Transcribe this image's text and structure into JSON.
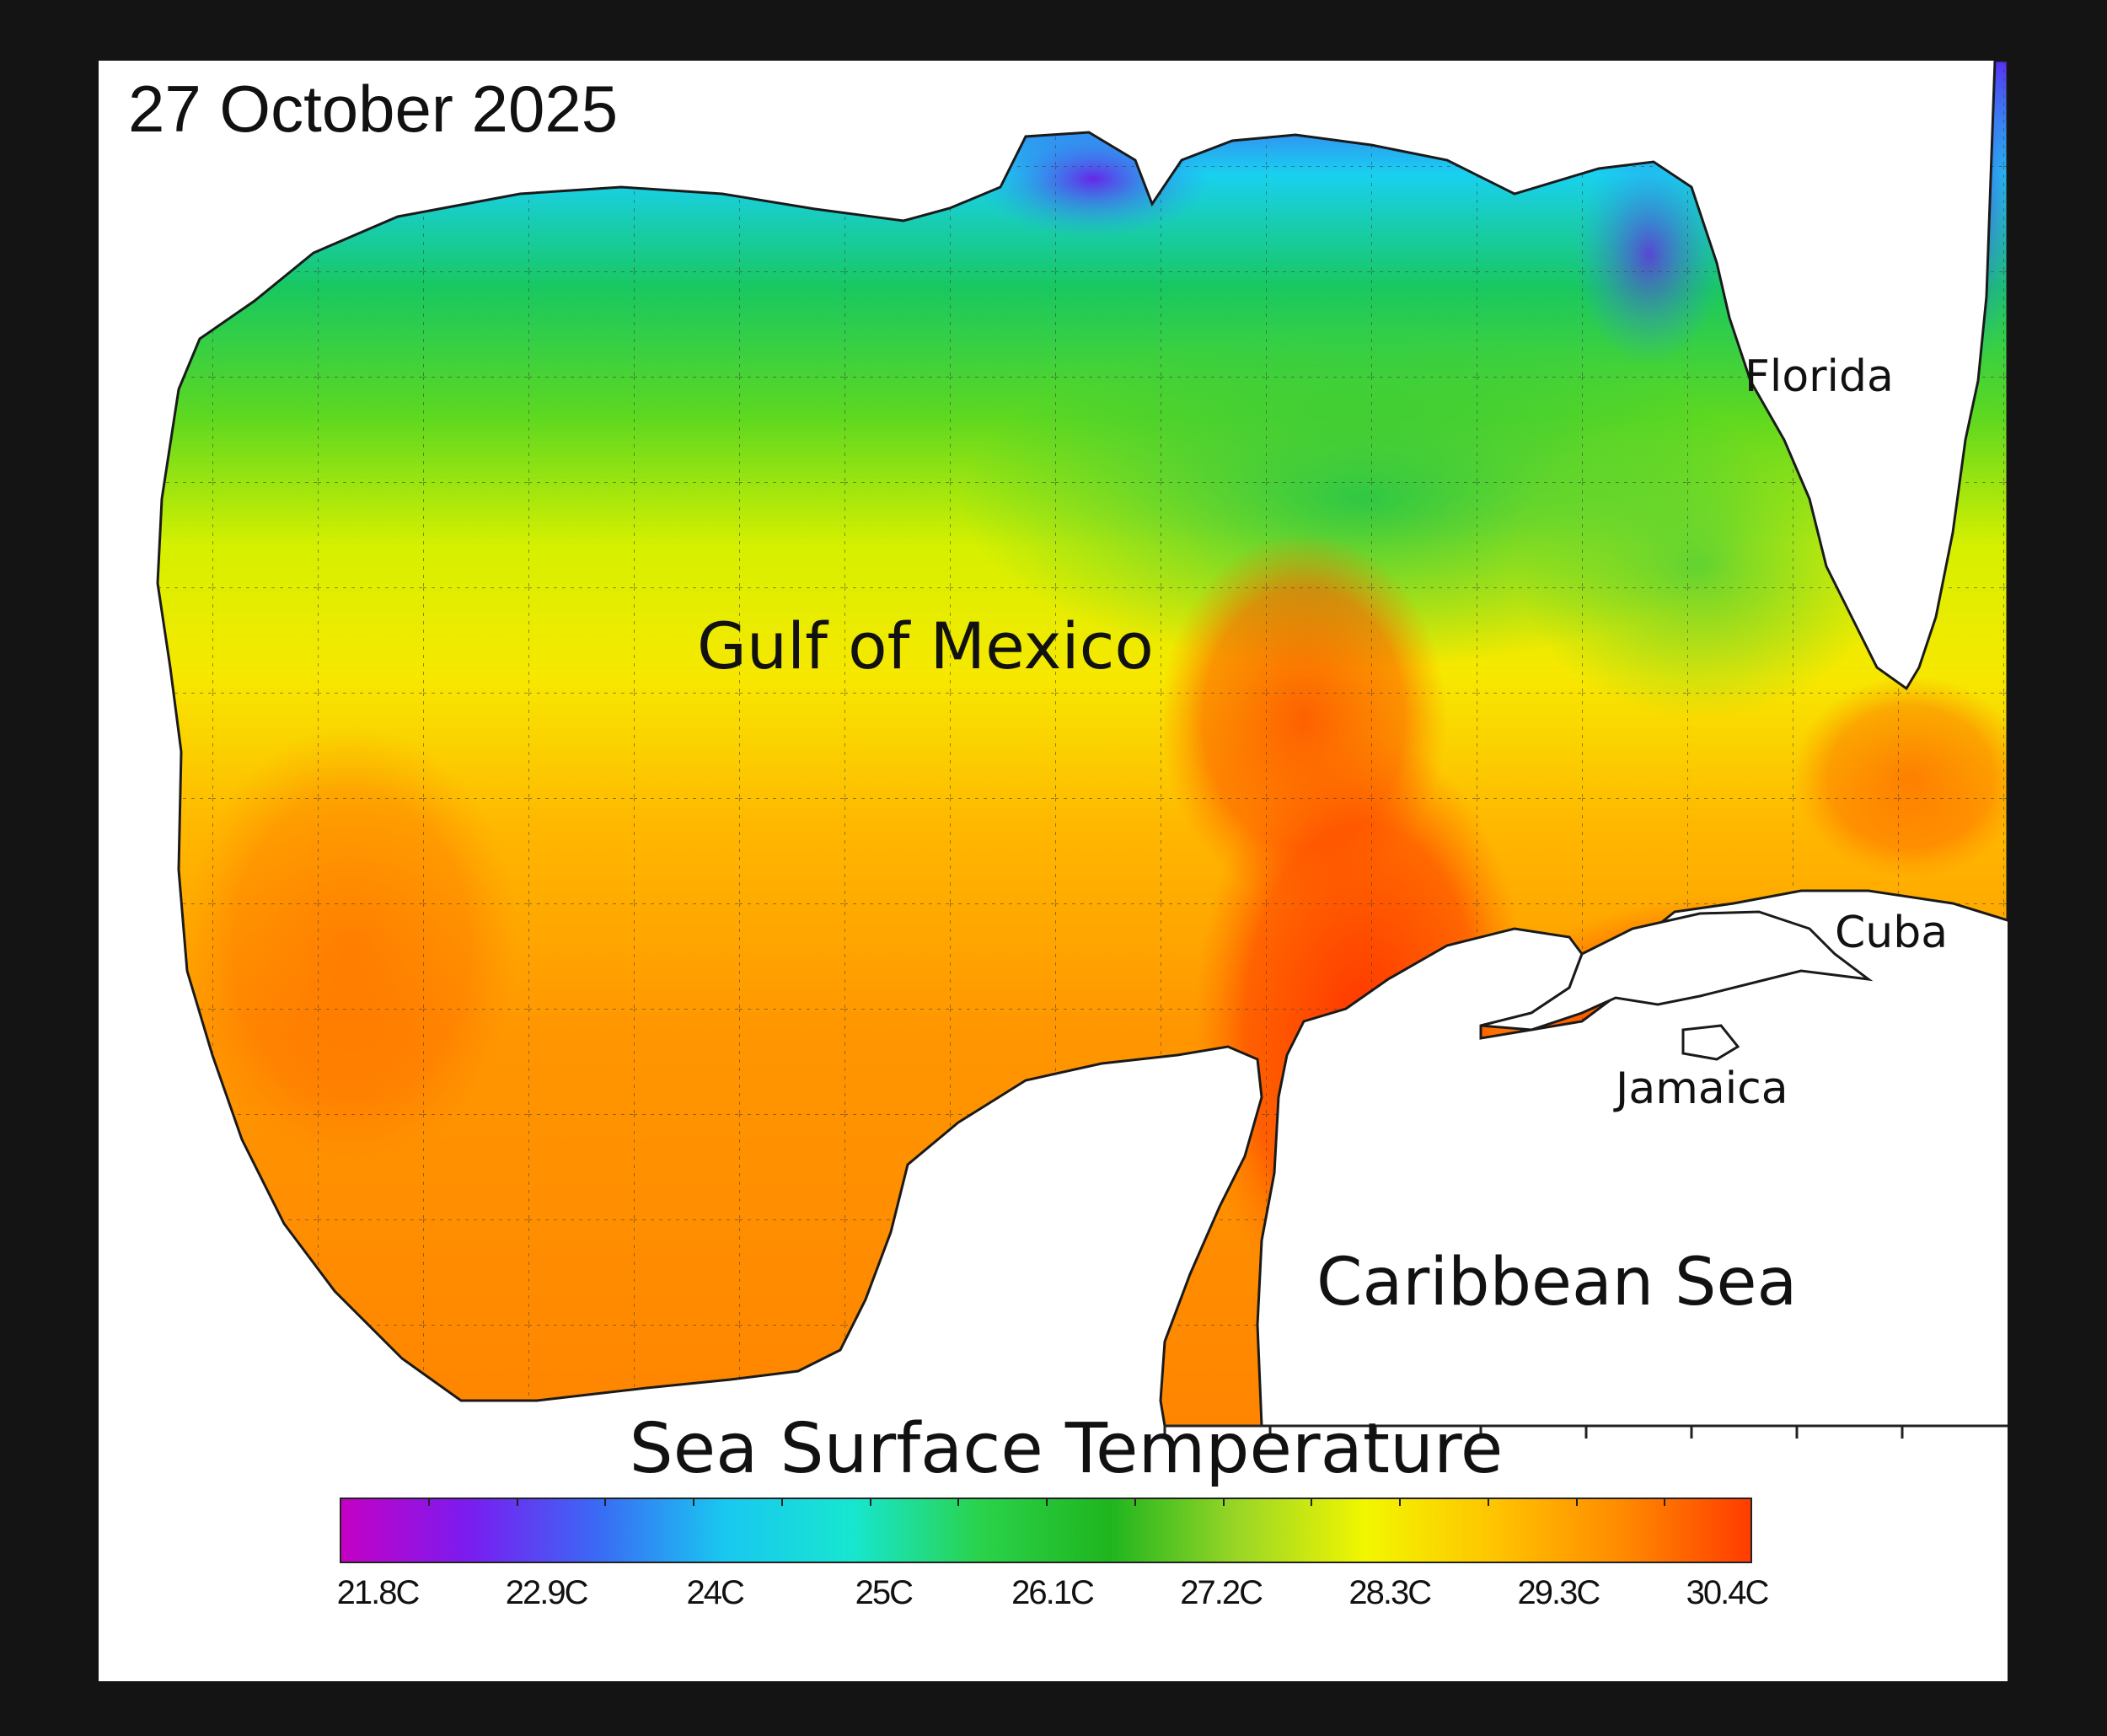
{
  "date": "27 October 2025",
  "legend": {
    "title": "Sea Surface Temperature",
    "ticks": [
      "21.8C",
      "22.9C",
      "24C",
      "25C",
      "26.1C",
      "27.2C",
      "28.3C",
      "29.3C",
      "30.4C"
    ],
    "colors": [
      "#c400c4",
      "#7a1cf0",
      "#3a6af5",
      "#19c8f0",
      "#17e6cf",
      "#2ad24a",
      "#1fb51f",
      "#9ad626",
      "#f2f600",
      "#ffc400",
      "#ff8a00",
      "#ff3c00"
    ]
  },
  "regions": {
    "gulf": "Gulf of Mexico",
    "caribbean": "Caribbean Sea",
    "florida": "Florida",
    "cuba": "Cuba",
    "jamaica": "Jamaica"
  }
}
